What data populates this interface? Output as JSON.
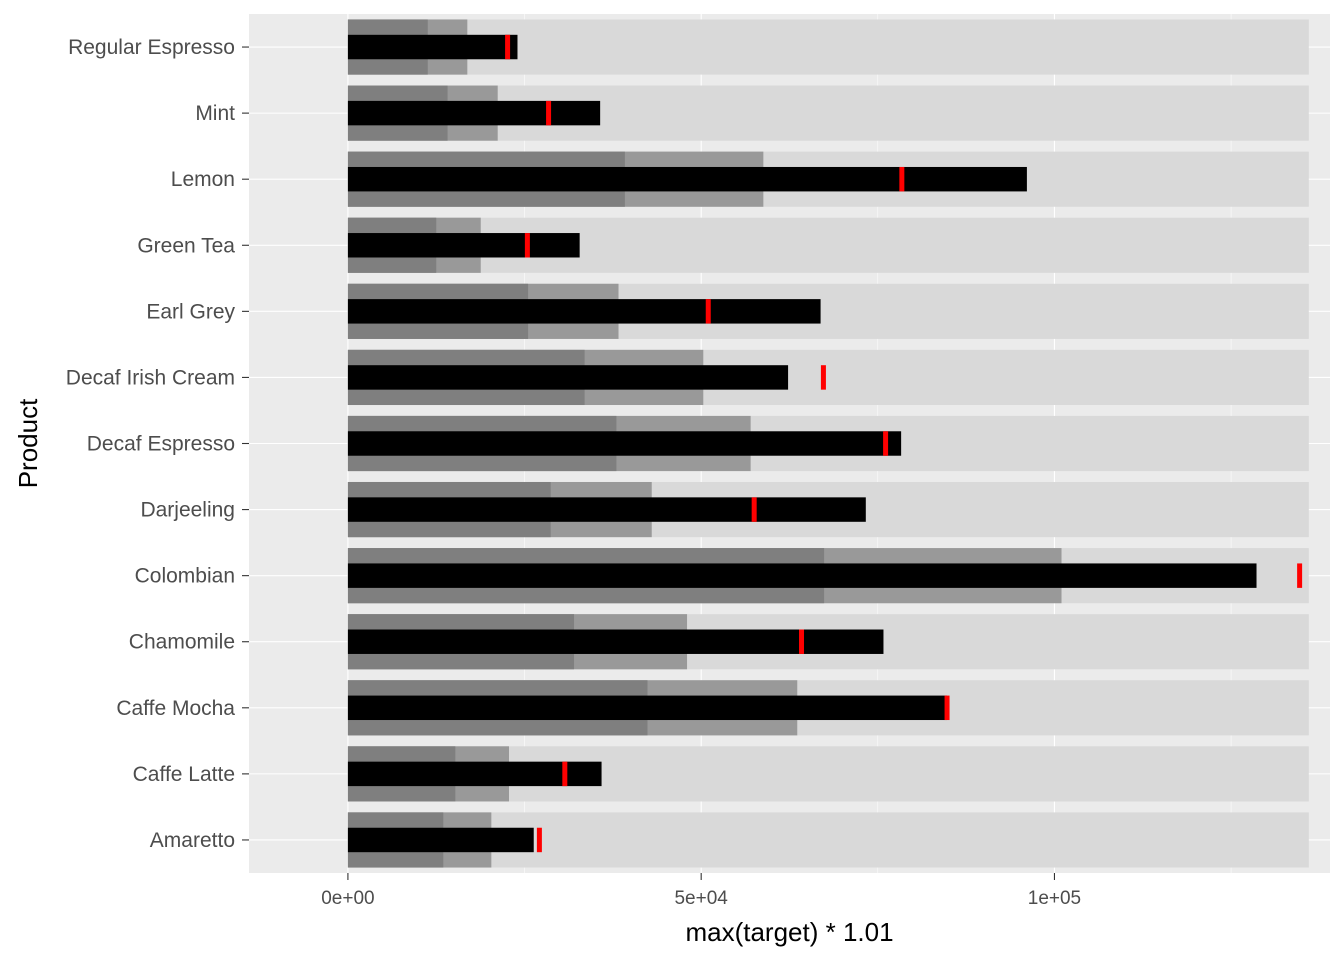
{
  "chart_data": {
    "type": "bar",
    "orientation": "horizontal",
    "subtype": "bullet",
    "xlabel": "max(target) * 1.01",
    "ylabel": "Product",
    "xlim": [
      -14000,
      139000
    ],
    "x_ticks": [
      {
        "value": 0,
        "label": "0e+00"
      },
      {
        "value": 50000,
        "label": "5e+04"
      },
      {
        "value": 100000,
        "label": "1e+05"
      }
    ],
    "grid": true,
    "max_range": 136000,
    "categories": [
      "Amaretto",
      "Caffe Latte",
      "Caffe Mocha",
      "Chamomile",
      "Colombian",
      "Darjeeling",
      "Decaf Espresso",
      "Decaf Irish Cream",
      "Earl Grey",
      "Green Tea",
      "Lemon",
      "Mint",
      "Regular Espresso"
    ],
    "series": [
      {
        "name": "",
        "role": "range_low",
        "values": [
          13500,
          15200,
          42400,
          32000,
          67400,
          28700,
          38000,
          33500,
          25500,
          12500,
          39200,
          14100,
          11300
        ]
      },
      {
        "name": "",
        "role": "range_mid",
        "values": [
          20300,
          22800,
          63600,
          48000,
          101000,
          43000,
          57000,
          50300,
          38300,
          18800,
          58800,
          21200,
          16900
        ]
      },
      {
        "name": "",
        "role": "actual",
        "values": [
          26300,
          35900,
          84800,
          75800,
          128600,
          73300,
          78300,
          62300,
          66900,
          32800,
          96100,
          35700,
          24000
        ]
      },
      {
        "name": "",
        "role": "target",
        "values": [
          27100,
          30700,
          84800,
          64200,
          134700,
          57500,
          76100,
          67300,
          51000,
          25400,
          78400,
          28400,
          22600
        ]
      }
    ],
    "colors": {
      "panel": "#ebebeb",
      "grid": "#ffffff",
      "max_range": "#d9d9d9",
      "range_low": "#7f7f7f",
      "range_mid": "#999999",
      "actual": "#000000",
      "target": "#ff0000",
      "text": "#4d4d4d",
      "title": "#000000"
    }
  }
}
